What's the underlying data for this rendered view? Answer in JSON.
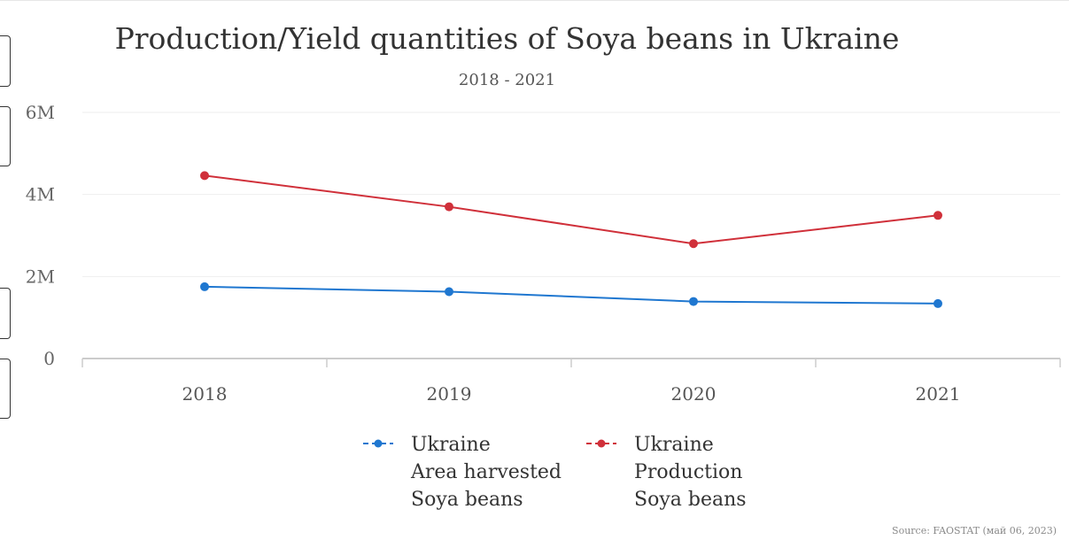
{
  "title": "Production/Yield quantities of Soya beans in Ukraine",
  "subtitle": "2018 - 2021",
  "source": "Source: FAOSTAT (май 06, 2023)",
  "colors": {
    "area_harvested": "#1f77d0",
    "production": "#d0303a",
    "grid": "#eeeeee",
    "axis": "#cccccc"
  },
  "legend": [
    {
      "series": "area_harvested",
      "lines": [
        "Ukraine",
        "Area harvested",
        "Soya beans"
      ]
    },
    {
      "series": "production",
      "lines": [
        "Ukraine",
        "Production",
        "Soya beans"
      ]
    }
  ],
  "chart_data": {
    "type": "line",
    "title": "Production/Yield quantities of Soya beans in Ukraine",
    "subtitle": "2018 - 2021",
    "categories": [
      "2018",
      "2019",
      "2020",
      "2021"
    ],
    "y_tick_labels": [
      "0",
      "2M",
      "4M",
      "6M"
    ],
    "y_ticks": [
      0,
      2000000,
      4000000,
      6000000
    ],
    "ylim": [
      0,
      6000000
    ],
    "grid": true,
    "legend_position": "bottom",
    "series": [
      {
        "key": "area_harvested",
        "name": "Ukraine Area harvested Soya beans",
        "values": [
          1750000,
          1630000,
          1390000,
          1340000
        ]
      },
      {
        "key": "production",
        "name": "Ukraine Production Soya beans",
        "values": [
          4460000,
          3700000,
          2800000,
          3490000
        ]
      }
    ]
  }
}
